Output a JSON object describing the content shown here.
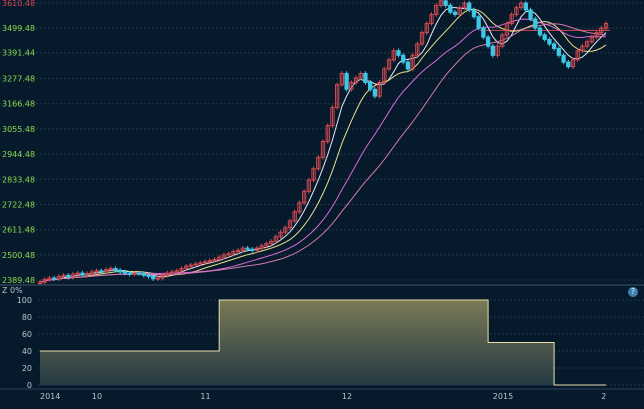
{
  "price_axis_labels": [
    "3610.48",
    "3499.48",
    "3391.44",
    "3277.48",
    "3166.48",
    "3055.48",
    "2944.48",
    "2833.48",
    "2722.48",
    "2611.48",
    "2500.48",
    "2389.48"
  ],
  "indicator_axis_labels": [
    "100",
    "80",
    "60",
    "40",
    "20",
    "0"
  ],
  "indicator_label": "Z 0%",
  "x_axis_labels": [
    "2014",
    "10",
    "11",
    "12",
    "2015",
    "2"
  ],
  "help_icon": "question-icon",
  "colors": {
    "background": "#061a2c",
    "grid": "#24384c",
    "up_candle": "#d24a50",
    "down_candle": "#3dc8e6",
    "ma_white": "#e8ecf2",
    "ma_yellow": "#e8e28a",
    "ma_magenta": "#d66bd6",
    "ma_pink": "#d37aa6",
    "price_axis_text": "#8bd84a",
    "indicator_line": "#e8dfae",
    "indicator_fill_top": "#7a7a55",
    "indicator_fill_bottom": "#253a44",
    "reference_line": "#d24a50"
  },
  "chart_data": [
    {
      "type": "candlestick",
      "ylim": [
        2389.48,
        3610.48
      ],
      "y_ticks": [
        3610.48,
        3499.48,
        3391.44,
        3277.48,
        3166.48,
        3055.48,
        2944.48,
        2833.48,
        2722.48,
        2611.48,
        2500.48,
        2389.48
      ],
      "grid": true,
      "x_labels": [
        "2014",
        "10",
        "11",
        "12",
        "2015",
        "2"
      ],
      "reference_value": 3490,
      "close": [
        2380,
        2392,
        2398,
        2395,
        2405,
        2410,
        2402,
        2415,
        2420,
        2412,
        2418,
        2425,
        2430,
        2428,
        2435,
        2440,
        2432,
        2425,
        2420,
        2415,
        2420,
        2418,
        2410,
        2405,
        2395,
        2398,
        2410,
        2420,
        2425,
        2430,
        2440,
        2450,
        2455,
        2460,
        2465,
        2470,
        2475,
        2480,
        2490,
        2500,
        2505,
        2515,
        2520,
        2530,
        2525,
        2520,
        2530,
        2540,
        2550,
        2560,
        2580,
        2600,
        2620,
        2650,
        2690,
        2730,
        2780,
        2830,
        2880,
        2930,
        3000,
        3070,
        3150,
        3250,
        3300,
        3230,
        3260,
        3280,
        3300,
        3260,
        3230,
        3200,
        3260,
        3320,
        3360,
        3400,
        3380,
        3350,
        3320,
        3380,
        3430,
        3480,
        3520,
        3560,
        3600,
        3620,
        3600,
        3570,
        3560,
        3590,
        3610,
        3580,
        3550,
        3500,
        3460,
        3420,
        3380,
        3420,
        3470,
        3520,
        3560,
        3590,
        3610,
        3580,
        3540,
        3500,
        3470,
        3450,
        3430,
        3410,
        3380,
        3350,
        3330,
        3360,
        3400,
        3420,
        3440,
        3460,
        3480,
        3500,
        3520
      ],
      "ma_periods": [
        5,
        10,
        20,
        30
      ]
    },
    {
      "type": "area",
      "ylim": [
        0,
        100
      ],
      "y_ticks": [
        100,
        80,
        60,
        40,
        20,
        0
      ],
      "steps": [
        {
          "from_index": 0,
          "to_index": 38,
          "value": 40
        },
        {
          "from_index": 38,
          "to_index": 95,
          "value": 100
        },
        {
          "from_index": 95,
          "to_index": 109,
          "value": 50
        },
        {
          "from_index": 109,
          "to_index": 123,
          "value": 0
        }
      ]
    }
  ]
}
